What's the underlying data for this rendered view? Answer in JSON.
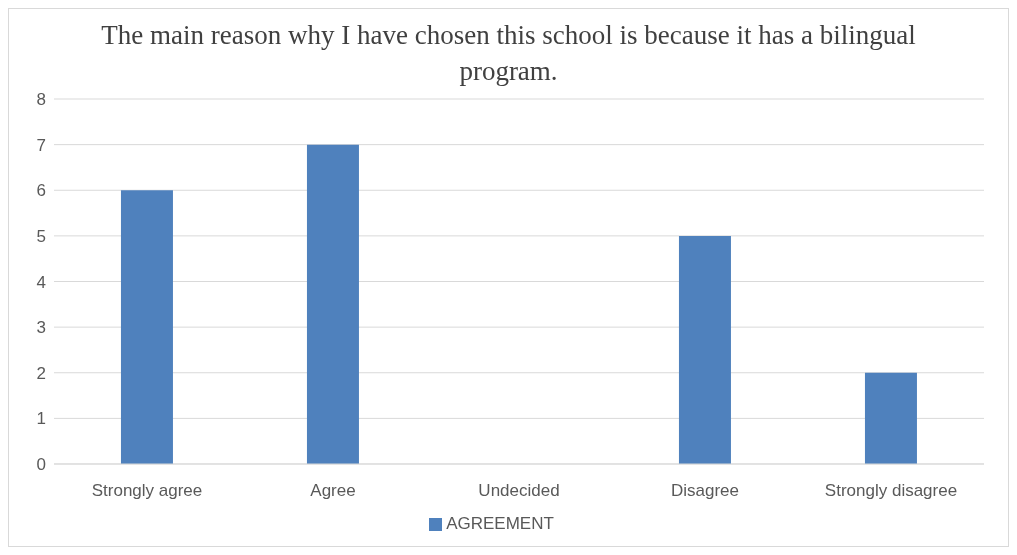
{
  "chart_data": {
    "type": "bar",
    "title": "The main reason why I have chosen this school is because it has a bilingual program.",
    "categories": [
      "Strongly agree",
      "Agree",
      "Undecided",
      "Disagree",
      "Strongly disagree"
    ],
    "series": [
      {
        "name": "AGREEMENT",
        "color": "#4f81bd",
        "values": [
          6,
          7,
          0,
          5,
          2
        ]
      }
    ],
    "ylim": [
      0,
      8
    ],
    "yticks": [
      0,
      1,
      2,
      3,
      4,
      5,
      6,
      7,
      8
    ],
    "grid": "y",
    "legend": "bottom"
  }
}
